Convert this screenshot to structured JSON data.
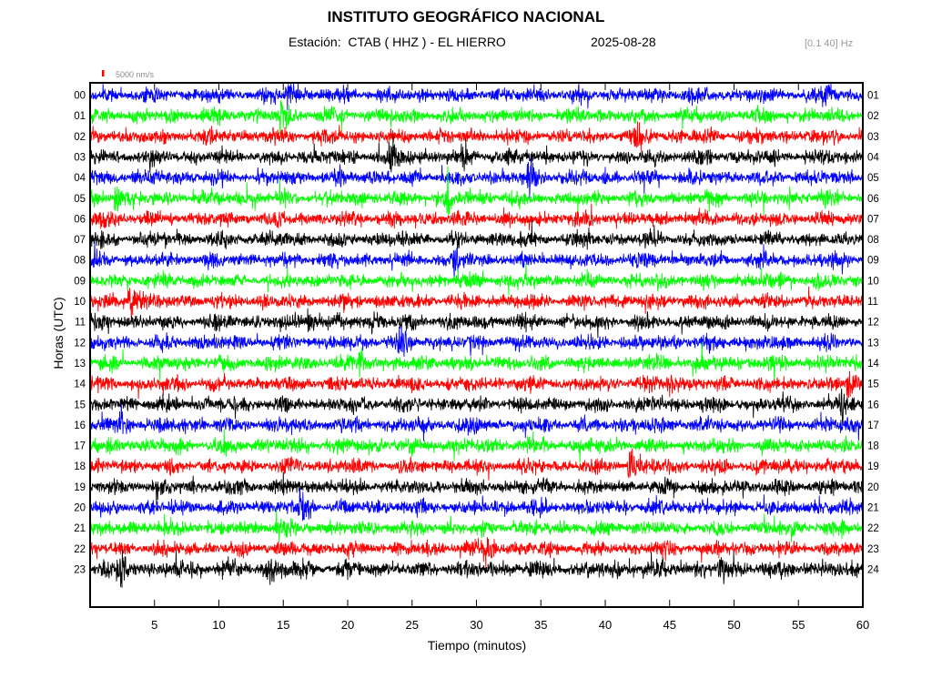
{
  "header": {
    "title": "INSTITUTO GEOGRÁFICO NACIONAL",
    "station": "Estación:  CTAB ( HHZ ) - EL HIERRO",
    "date": "2025-08-28",
    "filter": "[0.1 40] Hz"
  },
  "chart_data": {
    "type": "line",
    "title": "INSTITUTO GEOGRÁFICO NACIONAL",
    "xlabel": "Tiempo (minutos)",
    "ylabel": "Horas (UTC)",
    "xlim": [
      0,
      60
    ],
    "x_ticks": [
      5,
      10,
      15,
      20,
      25,
      30,
      35,
      40,
      45,
      50,
      55,
      60
    ],
    "left_hour_labels": [
      "00",
      "01",
      "02",
      "03",
      "04",
      "05",
      "06",
      "07",
      "08",
      "09",
      "10",
      "11",
      "12",
      "13",
      "14",
      "15",
      "16",
      "17",
      "18",
      "19",
      "20",
      "21",
      "22",
      "23"
    ],
    "right_hour_labels": [
      "01",
      "02",
      "03",
      "04",
      "05",
      "06",
      "07",
      "08",
      "09",
      "10",
      "11",
      "12",
      "13",
      "14",
      "15",
      "16",
      "17",
      "18",
      "19",
      "20",
      "21",
      "22",
      "23",
      "24"
    ],
    "trace_colors": [
      "#0000ff",
      "#00ff00",
      "#ff0000",
      "#000000"
    ],
    "scale_bar": {
      "label": "5000 nm/s",
      "color": "#ff0000"
    },
    "events": [
      {
        "hour": 0,
        "minute": 15.5,
        "strength": 1.8
      },
      {
        "hour": 0,
        "minute": 57.2,
        "strength": 1.6
      },
      {
        "hour": 1,
        "minute": 14.8,
        "strength": 1.5
      },
      {
        "hour": 2,
        "minute": 42.6,
        "strength": 2.0
      },
      {
        "hour": 3,
        "minute": 23.5,
        "strength": 1.8
      },
      {
        "hour": 3,
        "minute": 29.0,
        "strength": 1.4
      },
      {
        "hour": 4,
        "minute": 34.2,
        "strength": 1.4
      },
      {
        "hour": 5,
        "minute": 2.2,
        "strength": 1.5
      },
      {
        "hour": 5,
        "minute": 27.8,
        "strength": 1.4
      },
      {
        "hour": 6,
        "minute": 1.0,
        "strength": 1.4
      },
      {
        "hour": 8,
        "minute": 28.3,
        "strength": 1.7
      },
      {
        "hour": 10,
        "minute": 3.2,
        "strength": 2.2
      },
      {
        "hour": 11,
        "minute": 17.0,
        "strength": 1.6
      },
      {
        "hour": 11,
        "minute": 22.0,
        "strength": 1.4
      },
      {
        "hour": 12,
        "minute": 24.0,
        "strength": 1.5
      },
      {
        "hour": 13,
        "minute": 21.0,
        "strength": 1.4
      },
      {
        "hour": 14,
        "minute": 45.0,
        "strength": 1.6
      },
      {
        "hour": 14,
        "minute": 59.0,
        "strength": 2.0
      },
      {
        "hour": 15,
        "minute": 58.5,
        "strength": 1.8
      },
      {
        "hour": 16,
        "minute": 2.5,
        "strength": 1.4
      },
      {
        "hour": 18,
        "minute": 42.0,
        "strength": 2.2
      },
      {
        "hour": 20,
        "minute": 16.5,
        "strength": 1.8
      },
      {
        "hour": 21,
        "minute": 14.5,
        "strength": 1.5
      },
      {
        "hour": 22,
        "minute": 31.0,
        "strength": 1.4
      },
      {
        "hour": 23,
        "minute": 2.5,
        "strength": 1.7
      },
      {
        "hour": 23,
        "minute": 14.0,
        "strength": 1.6
      },
      {
        "hour": 23,
        "minute": 49.0,
        "strength": 1.5
      }
    ],
    "grid": false,
    "legend": "none"
  }
}
